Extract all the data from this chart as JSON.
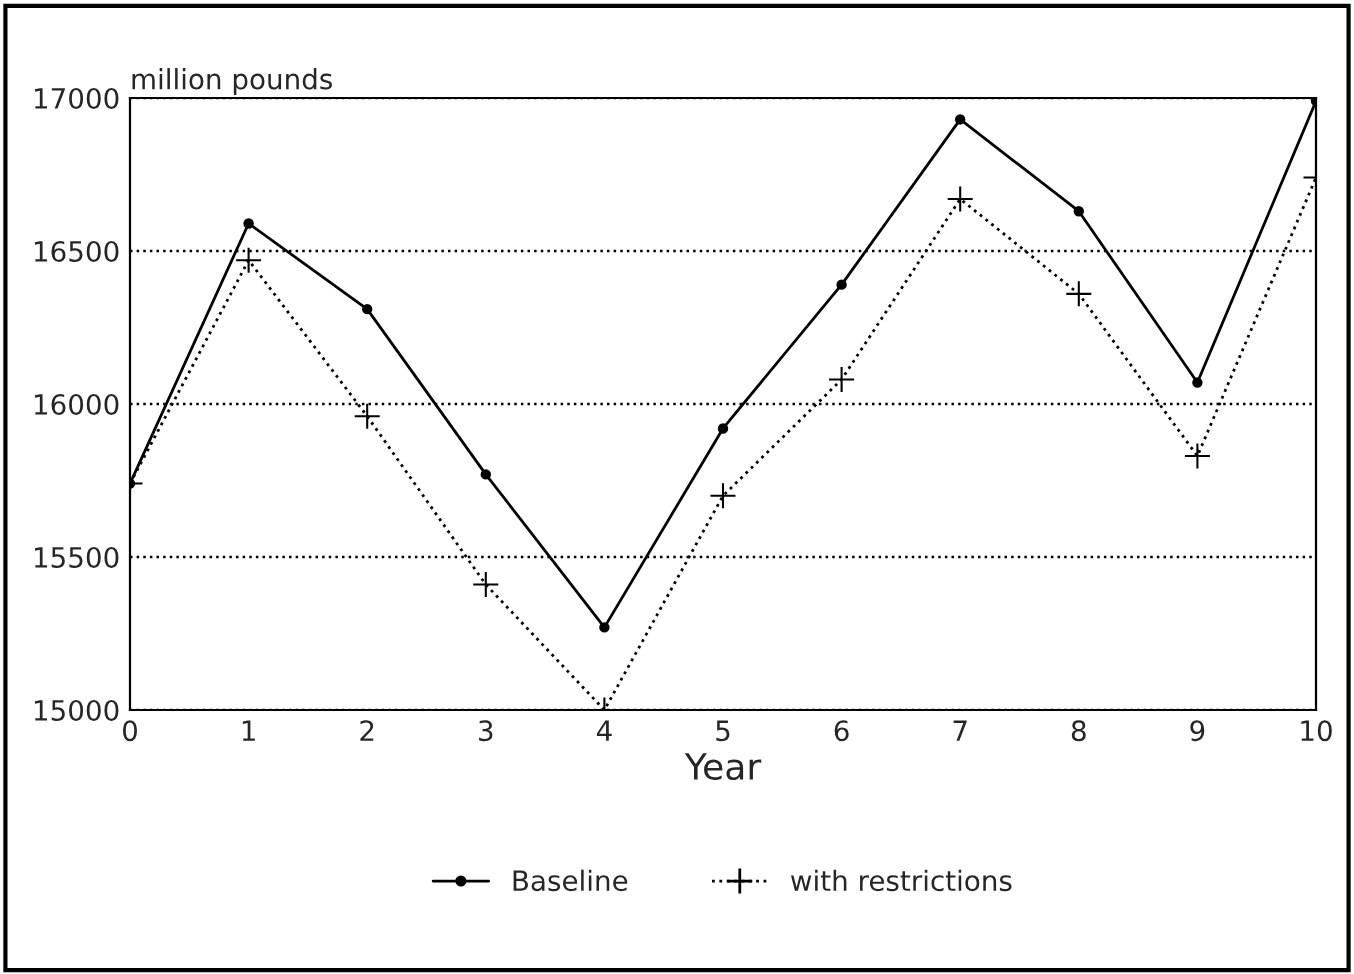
{
  "chart_data": {
    "type": "line",
    "xlabel": "Year",
    "ylabel": "million pounds",
    "x": [
      0,
      1,
      2,
      3,
      4,
      5,
      6,
      7,
      8,
      9,
      10
    ],
    "series": [
      {
        "name": "Baseline",
        "color": "#000000",
        "marker": "circle",
        "line_style": "solid",
        "values": [
          15740,
          16590,
          16310,
          15770,
          15270,
          15920,
          16390,
          16930,
          16630,
          16070,
          16990
        ]
      },
      {
        "name": "with restrictions",
        "color": "#000000",
        "marker": "cross",
        "line_style": "dotted",
        "values": [
          15740,
          16470,
          15960,
          15410,
          15000,
          15700,
          16080,
          16670,
          16360,
          15830,
          16740
        ]
      }
    ],
    "xlim": [
      0,
      10
    ],
    "xticks": [
      0,
      1,
      2,
      3,
      4,
      5,
      6,
      7,
      8,
      9,
      10
    ],
    "ylim": [
      15000,
      17000
    ],
    "yticks": [
      15000,
      15500,
      16000,
      16500,
      17000
    ],
    "grid": "y",
    "legend": "bottom"
  }
}
